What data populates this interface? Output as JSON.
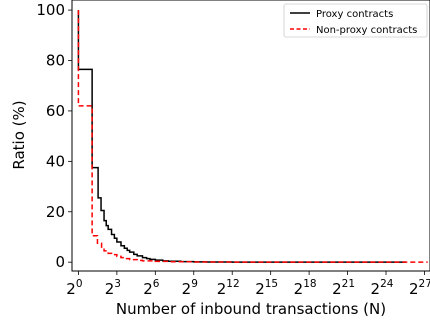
{
  "chart_data": {
    "type": "line",
    "xlabel": "Number of inbound transactions (N)",
    "ylabel": "Ratio (%)",
    "x_scale": "log2",
    "xlim": [
      0.707,
      181000000
    ],
    "ylim": [
      -3.5,
      104
    ],
    "x_ticks": [
      {
        "base": "2",
        "exp": "0",
        "value": 1
      },
      {
        "base": "2",
        "exp": "3",
        "value": 8
      },
      {
        "base": "2",
        "exp": "6",
        "value": 64
      },
      {
        "base": "2",
        "exp": "9",
        "value": 512
      },
      {
        "base": "2",
        "exp": "12",
        "value": 4096
      },
      {
        "base": "2",
        "exp": "15",
        "value": 32768
      },
      {
        "base": "2",
        "exp": "18",
        "value": 262144
      },
      {
        "base": "2",
        "exp": "21",
        "value": 2097152
      },
      {
        "base": "2",
        "exp": "24",
        "value": 16777216
      },
      {
        "base": "2",
        "exp": "27",
        "value": 134217728
      }
    ],
    "y_ticks": [
      "0",
      "20",
      "40",
      "60",
      "80",
      "100"
    ],
    "grid": false,
    "legend_position": "top-right",
    "series": [
      {
        "name": "Proxy contracts",
        "color": "#000000",
        "style": "solid",
        "step": "post",
        "x": [
          1,
          1,
          2,
          2.1,
          2.9,
          3.4,
          4,
          4.5,
          5,
          6,
          7,
          8,
          10,
          12,
          14,
          16,
          20,
          24,
          32,
          40,
          48,
          64,
          96,
          128,
          256,
          512,
          1024,
          4096,
          32768,
          262144,
          2097152,
          16777216,
          50000000
        ],
        "y": [
          100,
          76.5,
          76.5,
          37.5,
          25.5,
          20.5,
          16.5,
          14.5,
          13,
          11,
          9.5,
          8,
          6.5,
          5.5,
          4.7,
          4,
          3.1,
          2.5,
          1.8,
          1.4,
          1.1,
          0.8,
          0.5,
          0.35,
          0.2,
          0.1,
          0.05,
          0.02,
          0,
          0,
          0,
          0,
          0
        ]
      },
      {
        "name": "Non-proxy contracts",
        "color": "#ff0000",
        "style": "dashed",
        "step": "post",
        "x": [
          1,
          1,
          1.9,
          2.1,
          2.8,
          3.5,
          4,
          5,
          6,
          8,
          10,
          12,
          16,
          24,
          32,
          64,
          128,
          512,
          4096,
          32768,
          262144,
          2097152,
          16777216,
          134217728,
          160000000
        ],
        "y": [
          100,
          62,
          62,
          10.5,
          7.5,
          5.5,
          4.5,
          3.5,
          3,
          2.3,
          1.8,
          1.4,
          1,
          0.7,
          0.5,
          0.3,
          0.15,
          0.05,
          0.01,
          0,
          0,
          0,
          0,
          0,
          0
        ]
      }
    ]
  }
}
